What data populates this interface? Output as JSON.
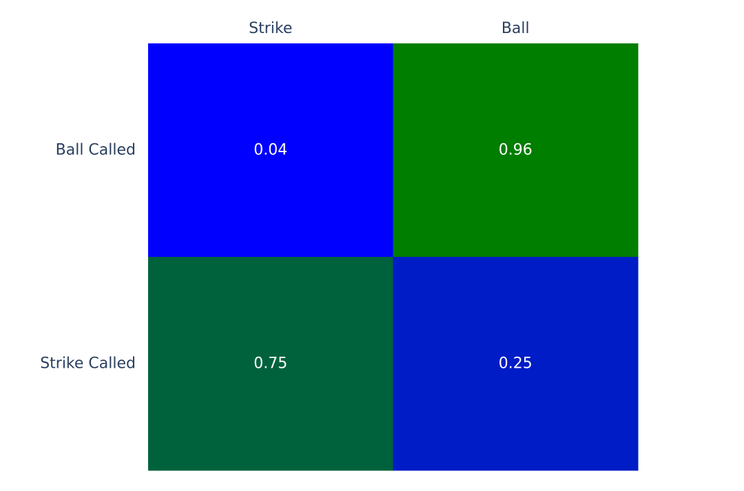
{
  "chart_data": {
    "type": "heatmap",
    "x_categories": [
      "Strike",
      "Ball"
    ],
    "y_categories": [
      "Ball Called",
      "Strike Called"
    ],
    "values": [
      [
        0.04,
        0.96
      ],
      [
        0.75,
        0.25
      ]
    ],
    "cell_colors": [
      [
        "#0000ff",
        "#007e00"
      ],
      [
        "#00623c",
        "#001cc6"
      ]
    ],
    "x_axis_position": "top",
    "grid": false,
    "text_color": "#ffffff",
    "tick_color": "#2a3f5f"
  }
}
